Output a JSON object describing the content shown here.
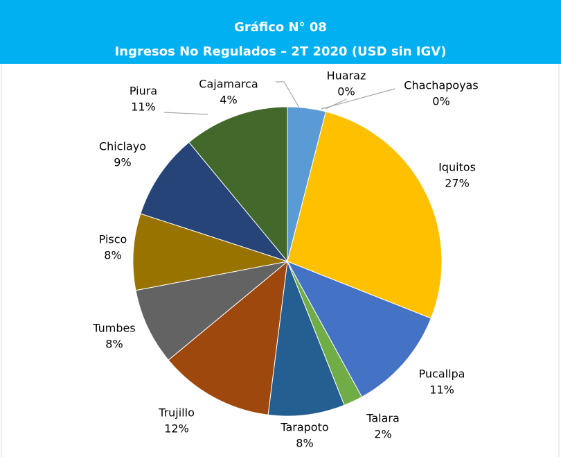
{
  "chart_data": {
    "type": "pie",
    "title": "Gráfico N° 08",
    "subtitle": "Ingresos No Regulados – 2T 2020 (USD sin IGV)",
    "categories": [
      "Cajamarca",
      "Huaraz",
      "Chachapoyas",
      "Iquitos",
      "Pucallpa",
      "Talara",
      "Tarapoto",
      "Trujillo",
      "Tumbes",
      "Pisco",
      "Chiclayo",
      "Piura"
    ],
    "values": [
      4,
      0,
      0,
      27,
      11,
      2,
      8,
      12,
      8,
      8,
      9,
      11
    ],
    "value_labels": [
      "4%",
      "0%",
      "0%",
      "27%",
      "11%",
      "2%",
      "8%",
      "12%",
      "8%",
      "8%",
      "9%",
      "11%"
    ],
    "colors": [
      "#5b9bd5",
      "#a5a5a5",
      "#ed7d31",
      "#ffc000",
      "#4472c4",
      "#70ad47",
      "#255e91",
      "#9e480e",
      "#636363",
      "#997300",
      "#264478",
      "#43682b"
    ]
  }
}
